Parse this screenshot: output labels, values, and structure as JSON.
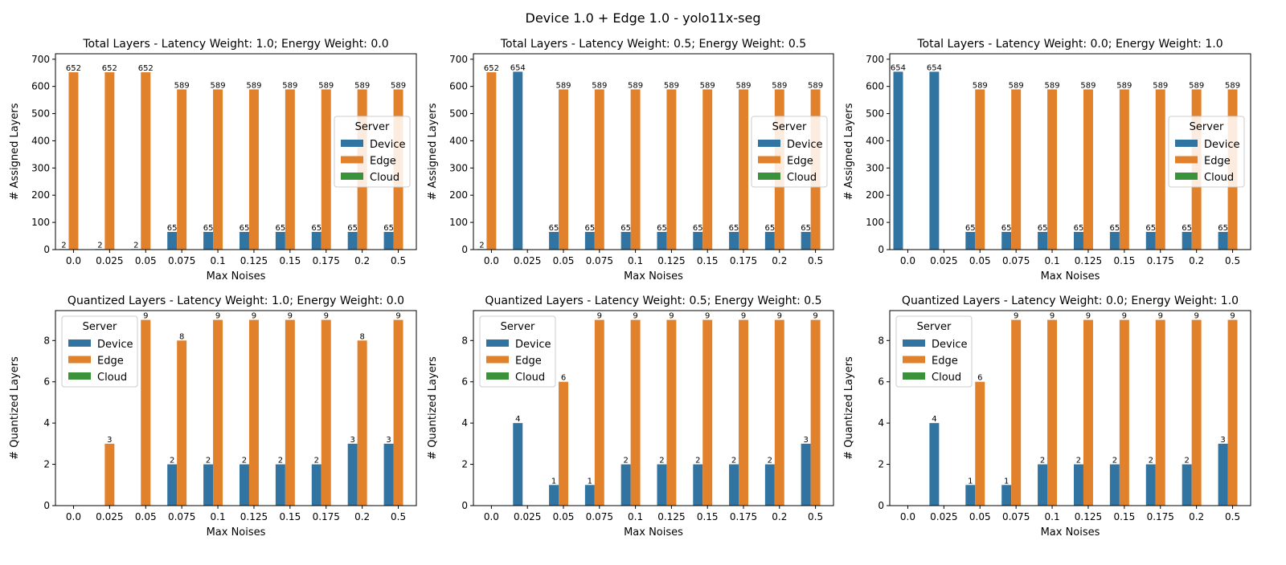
{
  "suptitle": "Device 1.0 + Edge 1.0 - yolo11x-seg",
  "legend_title": "Server",
  "colors": {
    "Device": "#3274a1",
    "Edge": "#e1812c",
    "Cloud": "#3a923a"
  },
  "chart_data": [
    {
      "type": "bar",
      "title": "Total Layers - Latency Weight: 1.0; Energy Weight: 0.0",
      "xlabel": "Max Noises",
      "ylabel": "# Assigned Layers",
      "ylim": [
        0,
        720
      ],
      "yticks": [
        0,
        100,
        200,
        300,
        400,
        500,
        600,
        700
      ],
      "categories": [
        "0.0",
        "0.025",
        "0.05",
        "0.075",
        "0.1",
        "0.125",
        "0.15",
        "0.175",
        "0.2",
        "0.5"
      ],
      "legend": "center-right",
      "series": [
        {
          "name": "Device",
          "values": [
            2,
            2,
            2,
            65,
            65,
            65,
            65,
            65,
            65,
            65
          ]
        },
        {
          "name": "Edge",
          "values": [
            652,
            652,
            652,
            589,
            589,
            589,
            589,
            589,
            589,
            589
          ]
        },
        {
          "name": "Cloud",
          "values": [
            0,
            0,
            0,
            0,
            0,
            0,
            0,
            0,
            0,
            0
          ]
        }
      ]
    },
    {
      "type": "bar",
      "title": "Total Layers - Latency Weight: 0.5; Energy Weight: 0.5",
      "xlabel": "Max Noises",
      "ylabel": "# Assigned Layers",
      "ylim": [
        0,
        720
      ],
      "yticks": [
        0,
        100,
        200,
        300,
        400,
        500,
        600,
        700
      ],
      "categories": [
        "0.0",
        "0.025",
        "0.05",
        "0.075",
        "0.1",
        "0.125",
        "0.15",
        "0.175",
        "0.2",
        "0.5"
      ],
      "legend": "center-right",
      "series": [
        {
          "name": "Device",
          "values": [
            2,
            654,
            65,
            65,
            65,
            65,
            65,
            65,
            65,
            65
          ]
        },
        {
          "name": "Edge",
          "values": [
            652,
            0,
            589,
            589,
            589,
            589,
            589,
            589,
            589,
            589
          ]
        },
        {
          "name": "Cloud",
          "values": [
            0,
            0,
            0,
            0,
            0,
            0,
            0,
            0,
            0,
            0
          ]
        }
      ]
    },
    {
      "type": "bar",
      "title": "Total Layers - Latency Weight: 0.0; Energy Weight: 1.0",
      "xlabel": "Max Noises",
      "ylabel": "# Assigned Layers",
      "ylim": [
        0,
        720
      ],
      "yticks": [
        0,
        100,
        200,
        300,
        400,
        500,
        600,
        700
      ],
      "categories": [
        "0.0",
        "0.025",
        "0.05",
        "0.075",
        "0.1",
        "0.125",
        "0.15",
        "0.175",
        "0.2",
        "0.5"
      ],
      "legend": "center-right",
      "series": [
        {
          "name": "Device",
          "values": [
            654,
            654,
            65,
            65,
            65,
            65,
            65,
            65,
            65,
            65
          ]
        },
        {
          "name": "Edge",
          "values": [
            0,
            0,
            589,
            589,
            589,
            589,
            589,
            589,
            589,
            589
          ]
        },
        {
          "name": "Cloud",
          "values": [
            0,
            0,
            0,
            0,
            0,
            0,
            0,
            0,
            0,
            0
          ]
        }
      ]
    },
    {
      "type": "bar",
      "title": "Quantized Layers - Latency Weight: 1.0; Energy Weight: 0.0",
      "xlabel": "Max Noises",
      "ylabel": "# Quantized Layers",
      "ylim": [
        0,
        9.45
      ],
      "yticks": [
        0,
        2,
        4,
        6,
        8
      ],
      "categories": [
        "0.0",
        "0.025",
        "0.05",
        "0.075",
        "0.1",
        "0.125",
        "0.15",
        "0.175",
        "0.2",
        "0.5"
      ],
      "legend": "top-left",
      "series": [
        {
          "name": "Device",
          "values": [
            0,
            0,
            0,
            2,
            2,
            2,
            2,
            2,
            3,
            3
          ]
        },
        {
          "name": "Edge",
          "values": [
            0,
            3,
            9,
            8,
            9,
            9,
            9,
            9,
            8,
            9
          ]
        },
        {
          "name": "Cloud",
          "values": [
            0,
            0,
            0,
            0,
            0,
            0,
            0,
            0,
            0,
            0
          ]
        }
      ]
    },
    {
      "type": "bar",
      "title": "Quantized Layers - Latency Weight: 0.5; Energy Weight: 0.5",
      "xlabel": "Max Noises",
      "ylabel": "# Quantized Layers",
      "ylim": [
        0,
        9.45
      ],
      "yticks": [
        0,
        2,
        4,
        6,
        8
      ],
      "categories": [
        "0.0",
        "0.025",
        "0.05",
        "0.075",
        "0.1",
        "0.125",
        "0.15",
        "0.175",
        "0.2",
        "0.5"
      ],
      "legend": "top-left",
      "series": [
        {
          "name": "Device",
          "values": [
            0,
            4,
            1,
            1,
            2,
            2,
            2,
            2,
            2,
            3
          ]
        },
        {
          "name": "Edge",
          "values": [
            0,
            0,
            6,
            9,
            9,
            9,
            9,
            9,
            9,
            9
          ]
        },
        {
          "name": "Cloud",
          "values": [
            0,
            0,
            0,
            0,
            0,
            0,
            0,
            0,
            0,
            0
          ]
        }
      ]
    },
    {
      "type": "bar",
      "title": "Quantized Layers - Latency Weight: 0.0; Energy Weight: 1.0",
      "xlabel": "Max Noises",
      "ylabel": "# Quantized Layers",
      "ylim": [
        0,
        9.45
      ],
      "yticks": [
        0,
        2,
        4,
        6,
        8
      ],
      "categories": [
        "0.0",
        "0.025",
        "0.05",
        "0.075",
        "0.1",
        "0.125",
        "0.15",
        "0.175",
        "0.2",
        "0.5"
      ],
      "legend": "top-left",
      "series": [
        {
          "name": "Device",
          "values": [
            0,
            4,
            1,
            1,
            2,
            2,
            2,
            2,
            2,
            3
          ]
        },
        {
          "name": "Edge",
          "values": [
            0,
            0,
            6,
            9,
            9,
            9,
            9,
            9,
            9,
            9
          ]
        },
        {
          "name": "Cloud",
          "values": [
            0,
            0,
            0,
            0,
            0,
            0,
            0,
            0,
            0,
            0
          ]
        }
      ]
    }
  ]
}
